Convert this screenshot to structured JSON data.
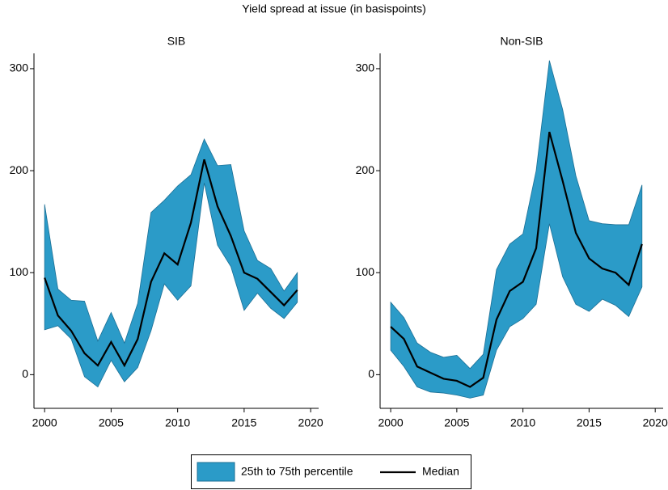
{
  "title": "Yield spread at issue (in basispoints)",
  "chart_data": [
    {
      "type": "line",
      "title": "SIB",
      "x": [
        2000,
        2001,
        2002,
        2003,
        2004,
        2005,
        2006,
        2007,
        2008,
        2009,
        2010,
        2011,
        2012,
        2013,
        2014,
        2015,
        2016,
        2017,
        2018,
        2019
      ],
      "series": [
        {
          "name": "25th to 75th percentile",
          "color": "#2b9bc8",
          "upper": [
            167,
            84,
            73,
            72,
            33,
            61,
            31,
            70,
            159,
            171,
            185,
            196,
            231,
            205,
            206,
            141,
            112,
            104,
            82,
            100
          ],
          "lower": [
            44,
            48,
            35,
            -2,
            -12,
            14,
            -7,
            7,
            43,
            89,
            73,
            87,
            188,
            127,
            106,
            63,
            80,
            65,
            55,
            71
          ]
        },
        {
          "name": "Median",
          "color": "#000000",
          "values": [
            95,
            58,
            43,
            21,
            9,
            32,
            9,
            35,
            91,
            119,
            108,
            149,
            211,
            165,
            136,
            100,
            94,
            81,
            68,
            83
          ]
        }
      ],
      "xlim": [
        1999.2,
        2020.6
      ],
      "xticks": [
        2000,
        2005,
        2010,
        2015,
        2020
      ],
      "ylim": [
        -33,
        315
      ],
      "yticks": [
        0,
        100,
        200,
        300
      ]
    },
    {
      "type": "line",
      "title": "Non-SIB",
      "x": [
        2000,
        2001,
        2002,
        2003,
        2004,
        2005,
        2006,
        2007,
        2008,
        2009,
        2010,
        2011,
        2012,
        2013,
        2014,
        2015,
        2016,
        2017,
        2018,
        2019
      ],
      "series": [
        {
          "name": "25th to 75th percentile",
          "color": "#2b9bc8",
          "upper": [
            71,
            56,
            31,
            22,
            17,
            19,
            6,
            20,
            103,
            128,
            138,
            200,
            308,
            260,
            195,
            151,
            148,
            147,
            147,
            186
          ],
          "lower": [
            24,
            8,
            -12,
            -17,
            -18,
            -20,
            -23,
            -20,
            24,
            47,
            55,
            69,
            148,
            96,
            69,
            62,
            74,
            68,
            57,
            86
          ]
        },
        {
          "name": "Median",
          "color": "#000000",
          "values": [
            47,
            35,
            8,
            2,
            -4,
            -6,
            -12,
            -3,
            54,
            82,
            91,
            124,
            238,
            190,
            139,
            114,
            104,
            100,
            88,
            128
          ]
        }
      ],
      "xlim": [
        1999.2,
        2020.6
      ],
      "xticks": [
        2000,
        2005,
        2010,
        2015,
        2020
      ],
      "ylim": [
        -33,
        315
      ],
      "yticks": [
        0,
        100,
        200,
        300
      ]
    }
  ]
}
